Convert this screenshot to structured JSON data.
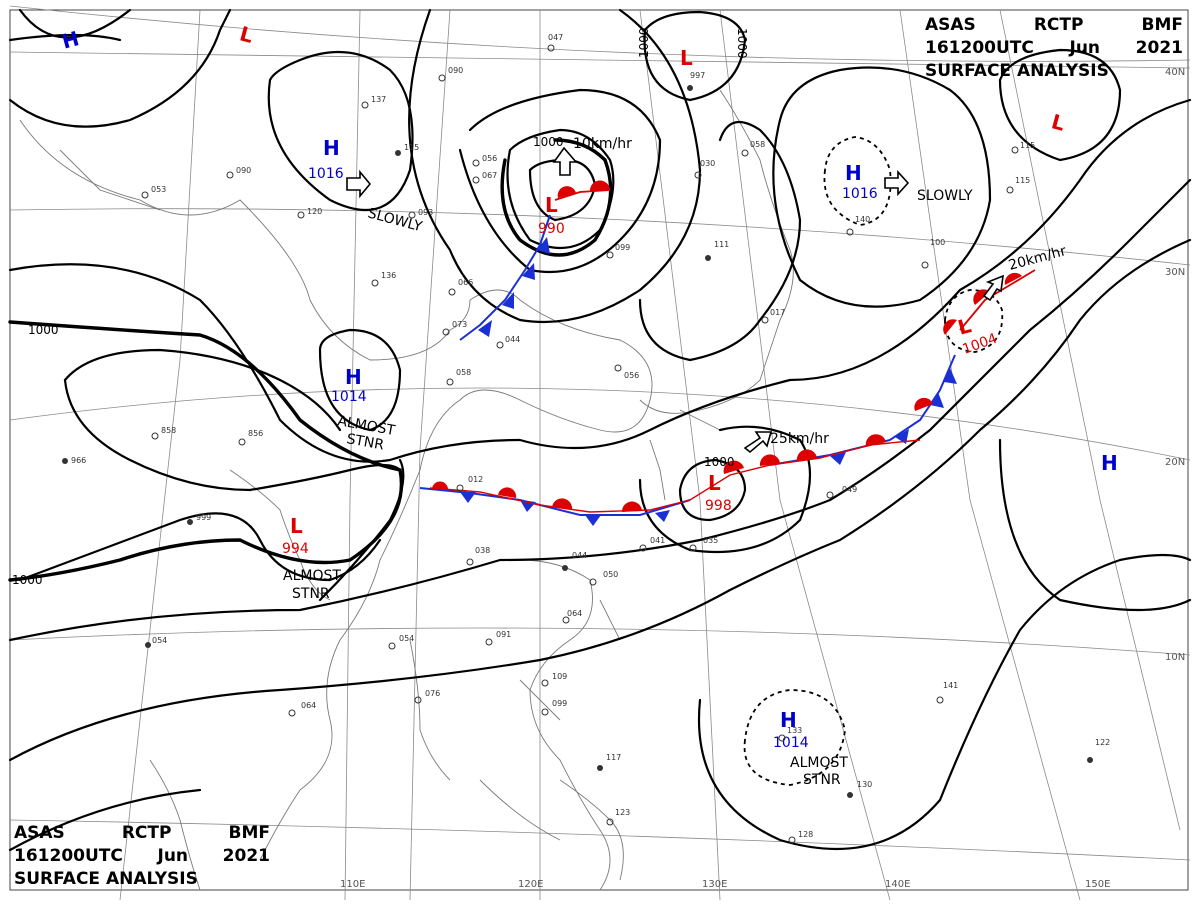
{
  "header": {
    "line1": [
      "ASAS",
      "RCTP",
      "BMF"
    ],
    "line2": [
      "161200UTC",
      "Jun",
      "2021"
    ],
    "line3": "SURFACE ANALYSIS"
  },
  "isobars": {
    "label_1000": "1000",
    "label_1000_west": "1000",
    "label_1000_sw": "1000",
    "label_1000_taiwan": "1000"
  },
  "pressure_centers": {
    "high_1016_west": {
      "symbol": "H",
      "value": "1016"
    },
    "high_1014_west": {
      "symbol": "H",
      "value": "1014"
    },
    "high_1016_east": {
      "symbol": "H",
      "value": "1016"
    },
    "high_1014_south": {
      "symbol": "H",
      "value": "1014"
    },
    "high_nw": {
      "symbol": "H"
    },
    "high_east": {
      "symbol": "H"
    },
    "low_990": {
      "symbol": "L",
      "value": "990"
    },
    "low_994": {
      "symbol": "L",
      "value": "994"
    },
    "low_998": {
      "symbol": "L",
      "value": "998"
    },
    "low_1004": {
      "symbol": "L",
      "value": "1004"
    },
    "low_north": {
      "symbol": "L"
    },
    "low_997": {
      "symbol": "L"
    },
    "low_ne": {
      "symbol": "L"
    }
  },
  "motion_labels": {
    "slowly_west": "SLOWLY",
    "slowly_east": "SLOWLY",
    "almost_stnr_1": [
      "ALMOST",
      "STNR"
    ],
    "almost_stnr_2": [
      "ALMOST",
      "STNR"
    ],
    "almost_stnr_3": [
      "ALMOST",
      "STNR"
    ],
    "speed_990": "10km/hr",
    "speed_998": "25km/hr",
    "speed_1004": "20km/hr"
  },
  "latitude_labels": [
    "40N",
    "30N",
    "20N",
    "10N"
  ],
  "longitude_labels": [
    "110E",
    "120E",
    "130E",
    "140E",
    "150E"
  ],
  "station_numbers": [
    "047",
    "090",
    "137",
    "115",
    "056",
    "067",
    "093",
    "120",
    "090",
    "053",
    "136",
    "066",
    "073",
    "044",
    "099",
    "030",
    "111",
    "058",
    "017",
    "100",
    "115",
    "140",
    "122",
    "049",
    "054",
    "012",
    "058",
    "035",
    "038",
    "041",
    "044",
    "050",
    "064",
    "091",
    "076",
    "064",
    "099",
    "109",
    "117",
    "123",
    "128",
    "130",
    "141",
    "999",
    "966",
    "858",
    "856",
    "133",
    "054",
    "056",
    "115",
    "997"
  ],
  "colors": {
    "high": "#0000cc",
    "low": "#dd0000",
    "isobar": "#000000",
    "grid": "#888888",
    "coast": "#777777"
  }
}
